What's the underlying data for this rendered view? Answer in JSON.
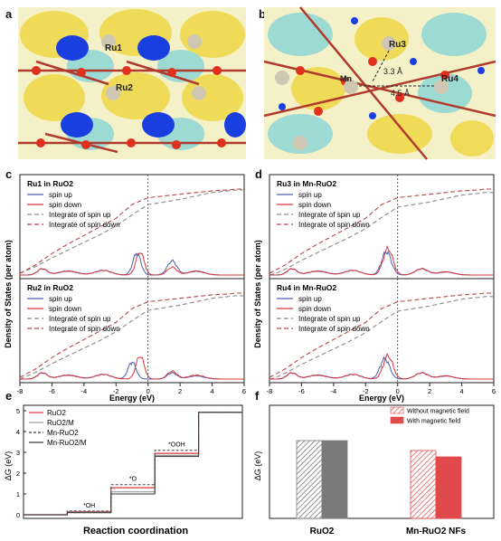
{
  "panel_letters": {
    "a": "a",
    "b": "b",
    "c": "c",
    "d": "d",
    "e": "e",
    "f": "f"
  },
  "struct_a": {
    "label_ru1": "Ru1",
    "label_ru2": "Ru2"
  },
  "struct_b": {
    "label_ru3": "Ru3",
    "label_ru4": "Ru4",
    "label_mn": "Mn",
    "dist1": "3.3 Å",
    "dist2": "4.5 Å"
  },
  "colors": {
    "spin_up": "#4a5fb0",
    "spin_down": "#d9353b",
    "int_up": "#8a8a8a",
    "int_down": "#b5484d",
    "grey_bar": "#7a7a7a",
    "red_bar": "#e04a4a"
  },
  "chart_data": [
    {
      "type": "line",
      "panel": "c-top",
      "title": "Ru1 in RuO2",
      "legend": [
        "spin up",
        "spin down",
        "Integrate of spin up",
        "Integrate of spin down"
      ],
      "xlim": [
        -8,
        6
      ],
      "integrate_up": {
        "x": [
          -8,
          -7,
          -6,
          -5,
          -4,
          -3,
          -2,
          -1,
          0,
          1,
          2,
          3,
          4,
          5,
          5.5,
          6
        ],
        "y": [
          0.02,
          0.1,
          0.2,
          0.29,
          0.38,
          0.47,
          0.57,
          0.7,
          0.82,
          0.85,
          0.88,
          0.92,
          0.96,
          0.98,
          0.99,
          0.99
        ]
      },
      "integrate_down": {
        "x": [
          -8,
          -7,
          -6,
          -5,
          -4,
          -3,
          -2,
          -1,
          0,
          1,
          2,
          3,
          4,
          5,
          5.5,
          6
        ],
        "y": [
          0.02,
          0.12,
          0.25,
          0.36,
          0.46,
          0.56,
          0.66,
          0.82,
          0.9,
          0.92,
          0.94,
          0.96,
          0.98,
          0.99,
          1.0,
          1.0
        ]
      }
    },
    {
      "type": "line",
      "panel": "c-bottom",
      "title": "Ru2 in RuO2",
      "legend": [
        "spin up",
        "spin down",
        "Integrate of spin up",
        "Integrate of spin down"
      ],
      "xlim": [
        -8,
        6
      ]
    },
    {
      "type": "line",
      "panel": "d-top",
      "title": "Ru3 in Mn-RuO2",
      "legend": [
        "spin up",
        "spin down",
        "Integrate of spin up",
        "Integrate of spin down"
      ],
      "xlim": [
        -8,
        6
      ]
    },
    {
      "type": "line",
      "panel": "d-bottom",
      "title": "Ru4 in Mn-RuO2",
      "legend": [
        "spin up",
        "spin down",
        "Integrate of spin up",
        "Integrate of spin down"
      ],
      "xlim": [
        -8,
        6
      ]
    },
    {
      "type": "line",
      "panel": "e",
      "xlabel": "Reaction coordination",
      "ylabel": "ΔG (eV)",
      "ylim": [
        0,
        5
      ],
      "yticks": [
        "0",
        "1",
        "2",
        "3",
        "4",
        "5"
      ],
      "legend": [
        "RuO2",
        "RuO2/M",
        "Mn-RuO2",
        "Mn-RuO2/M"
      ],
      "step_labels": [
        "*OH",
        "*O",
        "*OOH"
      ],
      "series": [
        {
          "name": "RuO2",
          "values": [
            0,
            0.15,
            1.3,
            2.95,
            4.92
          ]
        },
        {
          "name": "RuO2/M",
          "values": [
            0,
            0.12,
            1.1,
            2.85,
            4.92
          ]
        },
        {
          "name": "Mn-RuO2",
          "values": [
            0,
            0.18,
            1.45,
            3.1,
            4.92
          ]
        },
        {
          "name": "Mn-RuO2/M",
          "values": [
            0,
            0.1,
            1.0,
            2.8,
            4.92
          ]
        }
      ]
    },
    {
      "type": "bar",
      "panel": "f",
      "ylabel": "ΔG (eV)",
      "categories": [
        "RuO2",
        "Mn-RuO2 NFs"
      ],
      "legend": [
        "Without magnetic field",
        "With magnetic field"
      ],
      "ylim": [
        0,
        1.2
      ],
      "series": [
        {
          "name": "Without magnetic field",
          "values": [
            0.86,
            0.75
          ]
        },
        {
          "name": "With magnetic field",
          "values": [
            0.86,
            0.68
          ]
        }
      ]
    }
  ],
  "axes_text": {
    "dos_ylabel": "Density of States (per atom)",
    "energy_label": "Energy (eV)",
    "x_ticks": [
      "-8",
      "-6",
      "-4",
      "-2",
      "0",
      "2",
      "4",
      "6"
    ]
  }
}
